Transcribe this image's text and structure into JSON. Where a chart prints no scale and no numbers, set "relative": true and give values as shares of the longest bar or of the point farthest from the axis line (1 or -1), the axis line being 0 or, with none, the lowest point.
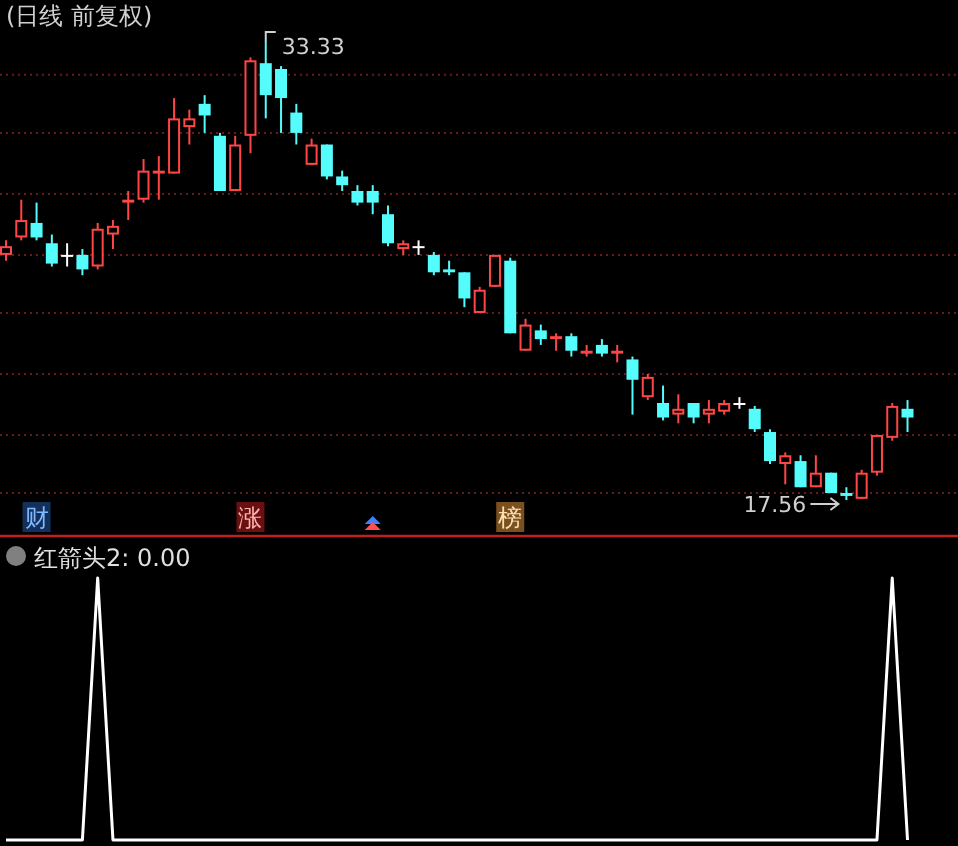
{
  "chart_data": [
    {
      "type": "candlestick",
      "title": "(日线 前复权)",
      "grid": "y",
      "categories": [
        null,
        null,
        null,
        null,
        null,
        null,
        null,
        null,
        null,
        null,
        null,
        null,
        null,
        null,
        null,
        null,
        null,
        null,
        null,
        null,
        null,
        null,
        null,
        null,
        null,
        null,
        null,
        null,
        null,
        null,
        null,
        null,
        null,
        null,
        null,
        null,
        null,
        null,
        null,
        null,
        null,
        null,
        null,
        null,
        null,
        null,
        null,
        null,
        null,
        null,
        null,
        null,
        null,
        null,
        null,
        null,
        null,
        null,
        null,
        null
      ],
      "ohlc": [
        [
          26.0,
          26.5,
          25.8,
          26.3
        ],
        [
          26.6,
          27.9,
          26.5,
          27.2
        ],
        [
          27.1,
          27.8,
          26.5,
          26.6
        ],
        [
          26.4,
          26.7,
          25.6,
          25.7
        ],
        [
          26.0,
          26.4,
          25.6,
          26.0
        ],
        [
          26.0,
          26.2,
          25.3,
          25.5
        ],
        [
          25.6,
          27.1,
          25.5,
          26.9
        ],
        [
          26.7,
          27.2,
          26.2,
          27.0
        ],
        [
          27.8,
          28.2,
          27.2,
          27.9
        ],
        [
          27.9,
          29.3,
          27.8,
          28.9
        ],
        [
          28.8,
          29.4,
          27.9,
          28.9
        ],
        [
          28.8,
          31.4,
          28.8,
          30.7
        ],
        [
          30.4,
          31.0,
          29.8,
          30.7
        ],
        [
          31.2,
          31.5,
          30.2,
          30.8
        ],
        [
          30.1,
          30.2,
          28.2,
          28.2
        ],
        [
          28.2,
          30.1,
          28.2,
          29.8
        ],
        [
          30.1,
          32.8,
          29.5,
          32.7
        ],
        [
          32.6,
          33.33,
          30.7,
          31.5
        ],
        [
          32.4,
          32.5,
          30.2,
          31.4
        ],
        [
          30.9,
          31.2,
          29.8,
          30.2
        ],
        [
          29.1,
          30.0,
          29.1,
          29.8
        ],
        [
          29.8,
          29.8,
          28.6,
          28.7
        ],
        [
          28.7,
          28.9,
          28.2,
          28.4
        ],
        [
          28.2,
          28.4,
          27.7,
          27.8
        ],
        [
          28.2,
          28.4,
          27.4,
          27.8
        ],
        [
          27.4,
          27.7,
          26.3,
          26.4
        ],
        [
          26.2,
          26.5,
          26.0,
          26.4
        ],
        [
          26.3,
          26.5,
          26.0,
          26.3
        ],
        [
          26.0,
          26.1,
          25.3,
          25.4
        ],
        [
          25.5,
          25.8,
          25.3,
          25.4
        ],
        [
          25.4,
          25.4,
          24.2,
          24.5
        ],
        [
          24.0,
          24.9,
          24.0,
          24.8
        ],
        [
          24.9,
          26.0,
          24.9,
          26.0
        ],
        [
          25.8,
          25.9,
          23.3,
          23.3
        ],
        [
          22.7,
          23.8,
          22.7,
          23.6
        ],
        [
          23.4,
          23.6,
          22.9,
          23.1
        ],
        [
          23.1,
          23.3,
          22.7,
          23.2
        ],
        [
          23.2,
          23.3,
          22.5,
          22.7
        ],
        [
          22.6,
          22.9,
          22.5,
          22.7
        ],
        [
          22.9,
          23.1,
          22.5,
          22.6
        ],
        [
          22.6,
          22.9,
          22.3,
          22.7
        ],
        [
          22.4,
          22.5,
          20.5,
          21.7
        ],
        [
          21.1,
          21.9,
          21.0,
          21.8
        ],
        [
          20.9,
          21.5,
          20.3,
          20.4
        ],
        [
          20.5,
          21.2,
          20.2,
          20.7
        ],
        [
          20.9,
          20.9,
          20.2,
          20.4
        ],
        [
          20.5,
          21.0,
          20.2,
          20.7
        ],
        [
          20.6,
          21.0,
          20.5,
          20.9
        ],
        [
          20.9,
          21.1,
          20.7,
          20.9
        ],
        [
          20.7,
          20.8,
          19.9,
          20.0
        ],
        [
          19.9,
          20.0,
          18.8,
          18.9
        ],
        [
          18.8,
          19.2,
          18.1,
          19.1
        ],
        [
          18.9,
          19.1,
          18.0,
          18.0
        ],
        [
          18.0,
          19.1,
          18.0,
          18.5
        ],
        [
          18.5,
          18.5,
          17.8,
          17.8
        ],
        [
          17.8,
          18.0,
          17.56,
          17.7
        ],
        [
          17.6,
          18.6,
          17.6,
          18.5
        ],
        [
          18.5,
          19.8,
          18.4,
          19.8
        ],
        [
          19.7,
          20.9,
          19.6,
          20.8
        ],
        [
          20.7,
          21.0,
          19.9,
          20.4
        ]
      ],
      "yticks": [
        {
          "value": 32.2,
          "label": null
        },
        {
          "value": 30.2,
          "label": null
        },
        {
          "value": 28.1,
          "label": null
        },
        {
          "value": 26.0,
          "label": null
        },
        {
          "value": 24.0,
          "label": null
        },
        {
          "value": 21.9,
          "label": null
        },
        {
          "value": 19.8,
          "label": null
        },
        {
          "value": 17.8,
          "label": null
        }
      ],
      "annotations": [
        "33.33",
        "17.56",
        "财",
        "涨",
        "榜"
      ]
    },
    {
      "type": "line",
      "title": "红箭头2: 0.00",
      "relative": true,
      "categories": [
        null,
        null,
        null,
        null,
        null,
        null,
        null,
        null,
        null,
        null,
        null,
        null,
        null,
        null,
        null,
        null,
        null,
        null,
        null,
        null,
        null,
        null,
        null,
        null,
        null,
        null,
        null,
        null,
        null,
        null,
        null,
        null,
        null,
        null,
        null,
        null,
        null,
        null,
        null,
        null,
        null,
        null,
        null,
        null,
        null,
        null,
        null,
        null,
        null,
        null,
        null,
        null,
        null,
        null,
        null,
        null,
        null,
        null,
        null,
        null
      ],
      "series": [
        {
          "color": "#ffffff",
          "values": [
            0,
            0,
            0,
            0,
            0,
            0,
            1,
            0,
            0,
            0,
            0,
            0,
            0,
            0,
            0,
            0,
            0,
            0,
            0,
            0,
            0,
            0,
            0,
            0,
            0,
            0,
            0,
            0,
            0,
            0,
            0,
            0,
            0,
            0,
            0,
            0,
            0,
            0,
            0,
            0,
            0,
            0,
            0,
            0,
            0,
            0,
            0,
            0,
            0,
            0,
            0,
            0,
            0,
            0,
            0,
            0,
            0,
            0,
            1,
            0
          ]
        }
      ]
    }
  ]
}
